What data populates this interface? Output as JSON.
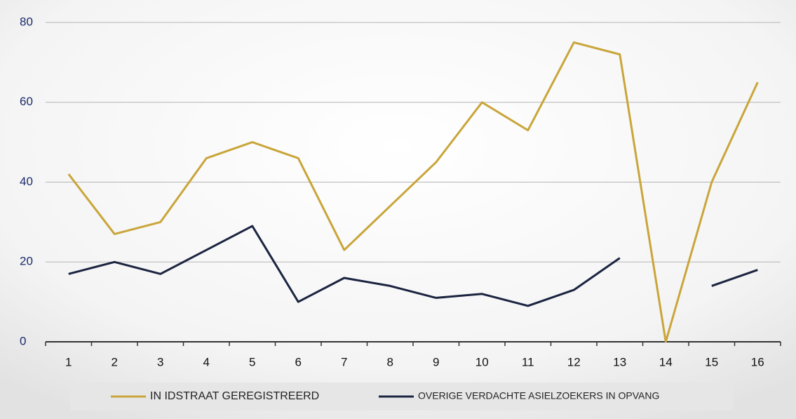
{
  "chart_data": {
    "type": "line",
    "categories": [
      "1",
      "2",
      "3",
      "4",
      "5",
      "6",
      "7",
      "8",
      "9",
      "10",
      "11",
      "12",
      "13",
      "14",
      "15",
      "16"
    ],
    "series": [
      {
        "name": "IN IDSTRAAT GEREGISTREERD",
        "color": "#c9a53a",
        "values": [
          42,
          27,
          30,
          46,
          50,
          46,
          23,
          34,
          45,
          60,
          53,
          75,
          72,
          0,
          40,
          65
        ]
      },
      {
        "name": "OVERIGE VERDACHTE ASIELZOEKERS IN OPVANG",
        "color": "#1b2440",
        "values": [
          17,
          20,
          17,
          23,
          29,
          10,
          16,
          14,
          11,
          12,
          9,
          13,
          21,
          null,
          14,
          18
        ]
      }
    ],
    "ylim": [
      0,
      80
    ],
    "yticks": [
      0,
      20,
      40,
      60,
      80
    ],
    "grid": true,
    "legend": "bottom"
  }
}
